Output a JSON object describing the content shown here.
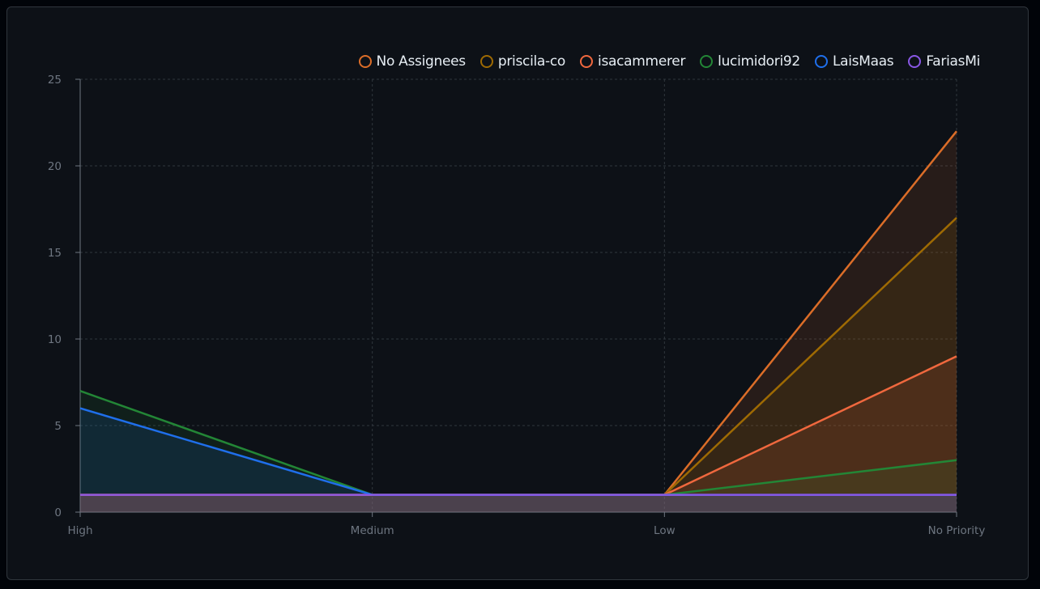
{
  "chart_data": {
    "type": "area",
    "title": "",
    "xlabel": "",
    "ylabel": "",
    "categories": [
      "High",
      "Medium",
      "Low",
      "No Priority"
    ],
    "ylim": [
      0,
      25
    ],
    "yticks": [
      0,
      5,
      10,
      15,
      20,
      25
    ],
    "grid": true,
    "legend_position": "top-right",
    "series": [
      {
        "name": "No Assignees",
        "color": "#db6d28",
        "values": [
          1,
          1,
          1,
          22
        ]
      },
      {
        "name": "priscila-co",
        "color": "#9e6a03",
        "values": [
          1,
          1,
          1,
          17
        ]
      },
      {
        "name": "isacammerer",
        "color": "#f0683e",
        "values": [
          1,
          1,
          1,
          9
        ]
      },
      {
        "name": "lucimidori92",
        "color": "#238636",
        "values": [
          7,
          1,
          1,
          3
        ]
      },
      {
        "name": "LaisMaas",
        "color": "#1f6feb",
        "values": [
          6,
          1,
          1,
          1
        ]
      },
      {
        "name": "FariasMi",
        "color": "#8957e5",
        "values": [
          1,
          1,
          1,
          1
        ]
      }
    ]
  }
}
